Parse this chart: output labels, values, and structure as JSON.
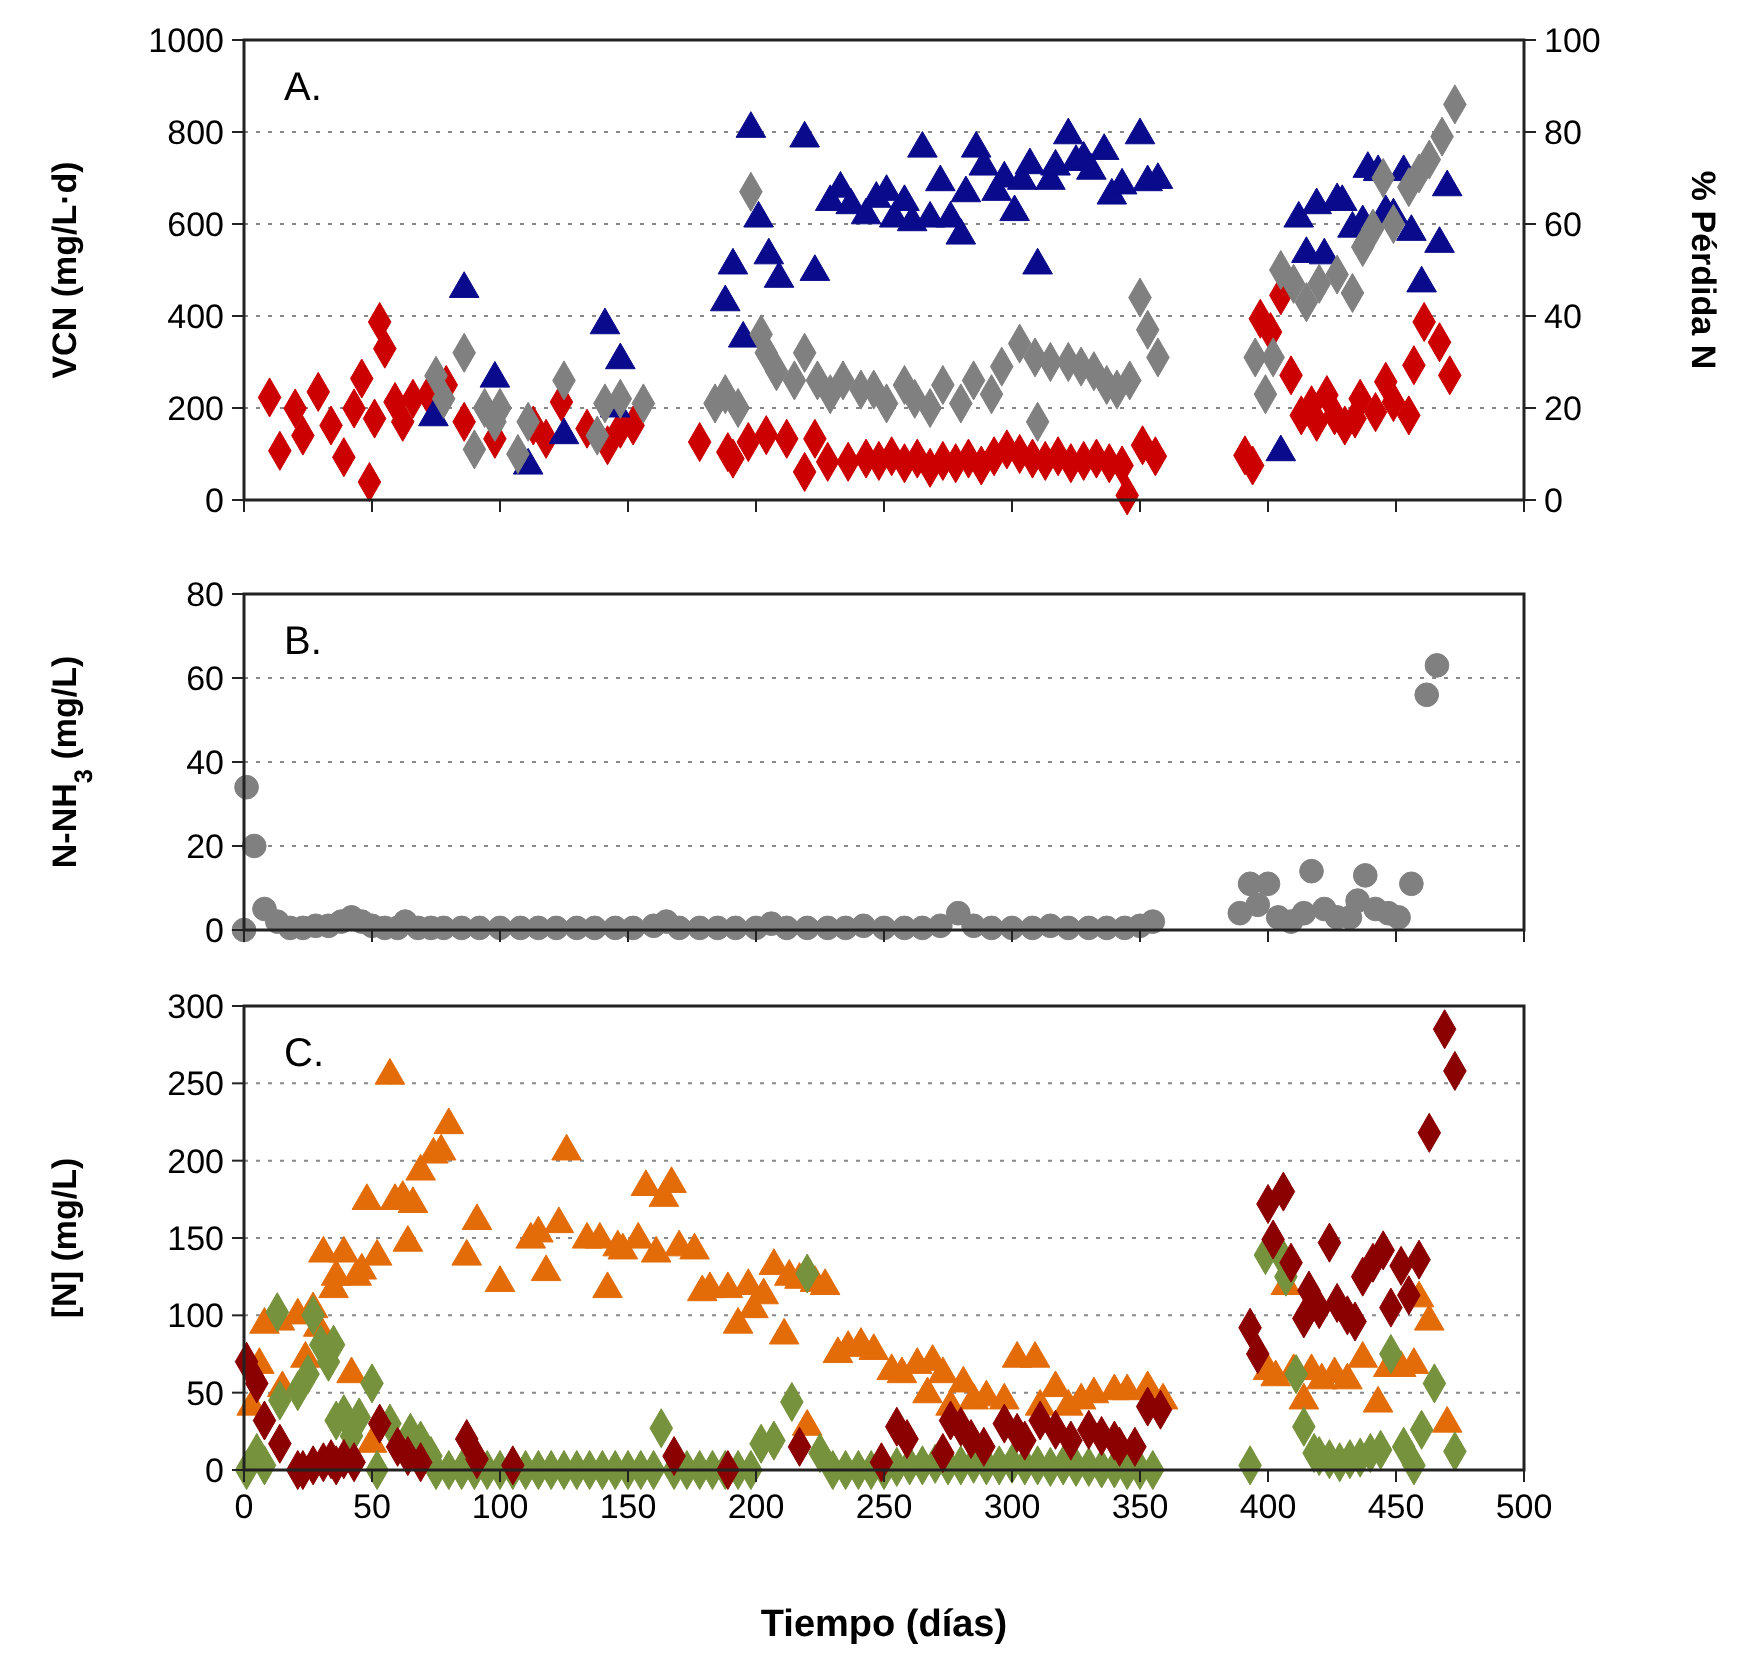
{
  "chart_data": [
    {
      "type": "scatter",
      "ylabel": "VCN (mg/L·d)",
      "y2label": "% Pérdida N",
      "annotations": [
        "A."
      ],
      "xlim": [
        0,
        500
      ],
      "xticks": [
        0,
        50,
        100,
        150,
        200,
        250,
        300,
        350,
        400,
        450,
        500
      ],
      "ylim": [
        0,
        1000
      ],
      "yticks": [
        0,
        200,
        400,
        600,
        800,
        1000
      ],
      "y2lim": [
        0,
        100
      ],
      "y2ticks": [
        0,
        20,
        40,
        60,
        80,
        100
      ],
      "grid": "y",
      "tick_labels": "y",
      "series": [
        {
          "color": "#cc0000",
          "marker": "diamond",
          "x": [
            10,
            14,
            20,
            23,
            29,
            34,
            39,
            43,
            46,
            49,
            51,
            53,
            55,
            59,
            62,
            66,
            72,
            79,
            86,
            98,
            113,
            118,
            124,
            134,
            142,
            147,
            152,
            178,
            189,
            191,
            197,
            204,
            212,
            219,
            223,
            228,
            236,
            243,
            248,
            253,
            258,
            263,
            268,
            273,
            278,
            283,
            288,
            293,
            298,
            303,
            308,
            313,
            318,
            323,
            328,
            333,
            338,
            343,
            345,
            351,
            356,
            391,
            394,
            397,
            401,
            405,
            409,
            413,
            417,
            419,
            423,
            426,
            430,
            434,
            436,
            442,
            446,
            449,
            455,
            457,
            461,
            467,
            471
          ],
          "values": [
            223,
            107,
            199,
            140,
            235,
            162,
            93,
            199,
            264,
            39,
            177,
            387,
            329,
            213,
            170,
            220,
            228,
            250,
            170,
            133,
            162,
            133,
            213,
            155,
            119,
            155,
            162,
            126,
            104,
            90,
            126,
            141,
            133,
            61,
            133,
            83,
            83,
            90,
            85,
            95,
            80,
            90,
            70,
            85,
            80,
            90,
            75,
            95,
            110,
            100,
            90,
            85,
            95,
            80,
            85,
            90,
            80,
            75,
            10,
            119,
            95,
            97,
            75,
            394,
            365,
            445,
            271,
            184,
            206,
            170,
            228,
            184,
            162,
            177,
            220,
            191,
            257,
            213,
            184,
            293,
            387,
            343,
            271
          ]
        },
        {
          "color": "#0a0a8c",
          "marker": "triangle",
          "x": [
            74,
            86,
            98,
            111,
            125,
            141,
            145,
            147,
            188,
            191,
            195,
            198,
            201,
            205,
            209,
            219,
            223,
            229,
            233,
            237,
            243,
            247,
            251,
            254,
            258,
            261,
            265,
            268,
            272,
            276,
            280,
            282,
            286,
            289,
            294,
            297,
            301,
            304,
            307,
            310,
            315,
            317,
            322,
            325,
            328,
            331,
            336,
            339,
            343,
            350,
            353,
            357,
            405,
            412,
            415,
            419,
            422,
            427,
            429,
            433,
            437,
            439,
            443,
            446,
            449,
            453,
            456,
            460,
            467,
            470
          ],
          "values": [
            180,
            459,
            264,
            75,
            141,
            380,
            199,
            304,
            430,
            510,
            351,
            807,
            612,
            532,
            481,
            786,
            496,
            648,
            677,
            641,
            619,
            655,
            670,
            612,
            648,
            604,
            764,
            612,
            691,
            612,
            575,
            667,
            764,
            725,
            670,
            699,
            626,
            694,
            728,
            510,
            694,
            725,
            793,
            735,
            742,
            716,
            759,
            662,
            684,
            793,
            691,
            696,
            104,
            612,
            535,
            641,
            532,
            652,
            648,
            590,
            604,
            720,
            713,
            626,
            619,
            713,
            583,
            471,
            557,
            680
          ]
        },
        {
          "color": "#808080",
          "marker": "diamond",
          "axis": "y2",
          "x": [
            75,
            78,
            86,
            90,
            94,
            98,
            100,
            107,
            111,
            125,
            138,
            141,
            147,
            156,
            184,
            188,
            193,
            198,
            202,
            204,
            208,
            215,
            219,
            224,
            229,
            234,
            241,
            246,
            251,
            258,
            262,
            268,
            273,
            280,
            285,
            292,
            296,
            303,
            309,
            310,
            315,
            322,
            327,
            332,
            337,
            341,
            346,
            350,
            353,
            357,
            395,
            399,
            402,
            405,
            410,
            415,
            420,
            427,
            433,
            437,
            441,
            445,
            449,
            455,
            459,
            463,
            468,
            473
          ],
          "values": [
            27,
            22,
            32,
            11,
            20,
            17,
            20,
            10,
            17,
            26,
            14,
            21,
            22,
            21,
            21,
            23,
            20,
            67,
            36,
            32,
            28,
            26,
            32,
            26,
            23,
            26,
            24,
            24,
            21,
            25,
            22,
            20,
            25,
            21,
            26,
            23,
            29,
            34,
            31,
            17,
            30,
            30,
            29,
            28,
            25,
            24,
            26,
            44,
            37,
            31,
            31,
            23,
            31,
            50,
            47,
            43,
            47,
            49,
            45,
            55,
            59,
            70,
            60,
            68,
            71,
            74,
            79,
            86
          ]
        }
      ]
    },
    {
      "type": "scatter",
      "ylabel": "N-NH$_{3}$ (mg/L)",
      "annotations": [
        "B."
      ],
      "xlim": [
        0,
        500
      ],
      "xticks": [
        0,
        50,
        100,
        150,
        200,
        250,
        300,
        350,
        400,
        450,
        500
      ],
      "ylim": [
        0,
        80
      ],
      "yticks": [
        0,
        20,
        40,
        60,
        80
      ],
      "grid": "y",
      "tick_labels": "y",
      "series": [
        {
          "color": "#808080",
          "marker": "circle",
          "x": [
            0,
            1,
            4,
            8,
            13,
            18,
            23,
            28,
            33,
            38,
            42,
            46,
            50,
            55,
            60,
            63,
            68,
            73,
            78,
            85,
            92,
            100,
            108,
            115,
            122,
            130,
            137,
            145,
            152,
            160,
            165,
            170,
            178,
            185,
            192,
            200,
            206,
            212,
            220,
            228,
            235,
            242,
            250,
            258,
            265,
            272,
            279,
            285,
            292,
            300,
            308,
            315,
            322,
            330,
            337,
            344,
            350,
            355,
            389,
            393,
            396,
            400,
            404,
            409,
            414,
            417,
            422,
            427,
            432,
            435,
            438,
            442,
            447,
            451,
            456,
            462,
            466
          ],
          "values": [
            0,
            34,
            20,
            5,
            2,
            0.5,
            0.5,
            1,
            1,
            2,
            3,
            2,
            1,
            0.5,
            0.5,
            2,
            0.5,
            0.5,
            0.5,
            0.5,
            0.5,
            0.5,
            0.5,
            0.5,
            0.5,
            0.5,
            0.5,
            0.5,
            0.5,
            1,
            2,
            0.5,
            0.5,
            0.5,
            0.5,
            0.5,
            1.5,
            0.5,
            0.5,
            0.5,
            0.5,
            1,
            0.5,
            0.5,
            0.5,
            1,
            4,
            1,
            0.5,
            0.5,
            0.5,
            1,
            0.5,
            0.5,
            0.5,
            0.5,
            1,
            2,
            4,
            11,
            6,
            11,
            3,
            2,
            4,
            14,
            5,
            3,
            3,
            7,
            13,
            5,
            4,
            3,
            11,
            56,
            63
          ]
        }
      ]
    },
    {
      "type": "scatter",
      "xlabel": "Tiempo (días)",
      "ylabel": "[N] (mg/L)",
      "annotations": [
        "C."
      ],
      "xlim": [
        0,
        500
      ],
      "xticks": [
        0,
        50,
        100,
        150,
        200,
        250,
        300,
        350,
        400,
        450,
        500
      ],
      "ylim": [
        0,
        300
      ],
      "yticks": [
        0,
        50,
        100,
        150,
        200,
        250,
        300
      ],
      "grid": "y",
      "series": [
        {
          "color": "#e36c09",
          "marker": "triangle",
          "x": [
            3,
            6,
            8,
            14,
            15,
            21,
            24,
            27,
            29,
            31,
            35,
            36,
            39,
            42,
            44,
            46,
            48,
            50,
            52,
            57,
            59,
            62,
            64,
            66,
            69,
            74,
            77,
            80,
            87,
            91,
            100,
            112,
            115,
            118,
            123,
            126,
            134,
            139,
            142,
            146,
            148,
            154,
            157,
            161,
            164,
            167,
            170,
            176,
            179,
            182,
            189,
            193,
            197,
            199,
            203,
            207,
            211,
            213,
            217,
            220,
            223,
            227,
            232,
            236,
            241,
            246,
            253,
            257,
            263,
            267,
            269,
            273,
            276,
            281,
            285,
            290,
            297,
            302,
            309,
            311,
            317,
            322,
            327,
            332,
            340,
            345,
            353,
            359,
            400,
            403,
            407,
            410,
            414,
            417,
            421,
            426,
            431,
            437,
            443,
            447,
            452,
            457,
            459,
            463,
            470
          ],
          "values": [
            41,
            68,
            94,
            96,
            53,
            100,
            72,
            104,
            92,
            140,
            117,
            125,
            140,
            62,
            125,
            129,
            174,
            17,
            138,
            255,
            174,
            176,
            147,
            172,
            193,
            204,
            206,
            223,
            138,
            161,
            121,
            149,
            153,
            128,
            159,
            206,
            149,
            149,
            117,
            144,
            142,
            149,
            183,
            140,
            176,
            185,
            144,
            142,
            115,
            117,
            117,
            94,
            119,
            104,
            113,
            132,
            87,
            125,
            123,
            28,
            121,
            119,
            75,
            79,
            81,
            77,
            64,
            62,
            68,
            49,
            70,
            62,
            41,
            56,
            45,
            47,
            45,
            72,
            72,
            41,
            53,
            41,
            45,
            49,
            51,
            51,
            53,
            45,
            64,
            60,
            119,
            64,
            45,
            64,
            58,
            62,
            58,
            72,
            43,
            66,
            66,
            68,
            111,
            96,
            30
          ]
        },
        {
          "color": "#76923c",
          "marker": "diamond",
          "x": [
            1,
            5,
            8,
            13,
            14,
            21,
            25,
            27,
            30,
            33,
            35,
            36,
            39,
            42,
            45,
            50,
            52,
            57,
            65,
            69,
            73,
            75,
            80,
            85,
            90,
            95,
            100,
            105,
            110,
            115,
            120,
            125,
            130,
            135,
            140,
            145,
            150,
            155,
            160,
            163,
            168,
            173,
            178,
            183,
            188,
            193,
            198,
            202,
            207,
            214,
            220,
            225,
            230,
            235,
            240,
            245,
            250,
            255,
            260,
            265,
            270,
            275,
            280,
            285,
            290,
            295,
            300,
            305,
            310,
            315,
            320,
            325,
            330,
            335,
            340,
            345,
            350,
            355,
            393,
            399,
            405,
            407,
            411,
            414,
            418,
            420,
            424,
            428,
            432,
            436,
            440,
            444,
            448,
            453,
            457,
            460,
            465,
            473
          ],
          "values": [
            0,
            11,
            3,
            102,
            45,
            51,
            62,
            100,
            81,
            70,
            81,
            32,
            36,
            22,
            34,
            56,
            0,
            30,
            24,
            19,
            9,
            0,
            0,
            0,
            0,
            0,
            0,
            0,
            0,
            0,
            0,
            0,
            0,
            0,
            0,
            0,
            0,
            0,
            0,
            27,
            0,
            0,
            0,
            0,
            0,
            0,
            0,
            17,
            19,
            44,
            127,
            11,
            0,
            0,
            0,
            0,
            0,
            2,
            3,
            3,
            4,
            3,
            3,
            4,
            3,
            3,
            4,
            3,
            3,
            2,
            3,
            2,
            2,
            1,
            1,
            0,
            0,
            0,
            3,
            139,
            139,
            125,
            62,
            28,
            11,
            9,
            7,
            5,
            7,
            8,
            11,
            13,
            75,
            15,
            3,
            26,
            56,
            12
          ]
        },
        {
          "color": "#8b0000",
          "marker": "diamond",
          "x": [
            1,
            5,
            8,
            14,
            21,
            23,
            27,
            31,
            34,
            36,
            39,
            43,
            53,
            60,
            64,
            69,
            87,
            91,
            105,
            168,
            189,
            217,
            249,
            255,
            259,
            273,
            276,
            280,
            284,
            289,
            297,
            302,
            305,
            311,
            317,
            323,
            330,
            335,
            340,
            342,
            348,
            353,
            358,
            393,
            396,
            400,
            402,
            406,
            409,
            414,
            416,
            420,
            424,
            427,
            431,
            434,
            437,
            441,
            445,
            448,
            452,
            455,
            459,
            463,
            469,
            473
          ],
          "values": [
            70,
            56,
            32,
            17,
            0,
            0,
            3,
            5,
            7,
            3,
            7,
            5,
            30,
            15,
            9,
            5,
            20,
            7,
            3,
            9,
            0,
            15,
            5,
            28,
            20,
            11,
            32,
            28,
            20,
            15,
            30,
            24,
            19,
            32,
            26,
            19,
            26,
            22,
            19,
            15,
            15,
            41,
            39,
            92,
            75,
            172,
            149,
            180,
            134,
            98,
            116,
            104,
            147,
            108,
            100,
            96,
            125,
            134,
            142,
            105,
            132,
            113,
            136,
            218,
            285,
            258
          ]
        }
      ]
    }
  ]
}
